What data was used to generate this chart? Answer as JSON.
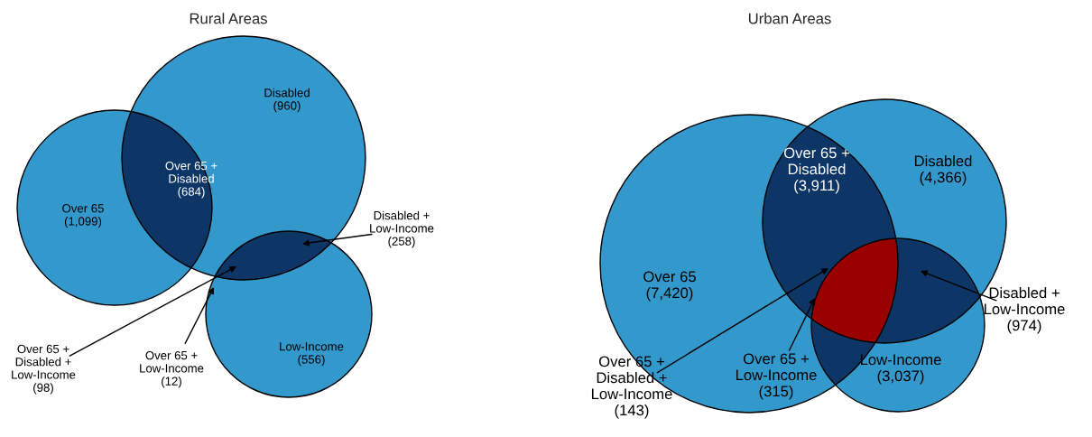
{
  "chart_data": [
    {
      "type": "other",
      "title": "Rural Areas",
      "categories": [
        "Over 65",
        "Disabled",
        "Low-Income",
        "Over 65 + Disabled",
        "Disabled + Low-Income",
        "Over 65 + Low-Income",
        "Over 65 + Disabled + Low-Income"
      ],
      "values": [
        1099,
        960,
        556,
        684,
        258,
        12,
        98
      ],
      "value_labels": [
        "(1,099)",
        "(960)",
        "(556)",
        "(684)",
        "(258)",
        "(12)",
        "(98)"
      ],
      "colors": [
        "#3399cc",
        "#3399cc",
        "#3399cc",
        "#0d3566",
        "#0d3566",
        "#0d3566",
        "#990000"
      ],
      "data_labels": true
    },
    {
      "type": "other",
      "title": "Urban Areas",
      "categories": [
        "Over 65",
        "Disabled",
        "Low-Income",
        "Over 65 + Disabled",
        "Disabled + Low-Income",
        "Over 65 + Low-Income",
        "Over 65 + Disabled + Low-Income"
      ],
      "values": [
        7420,
        4366,
        3037,
        3911,
        974,
        315,
        143
      ],
      "value_labels": [
        "(7,420)",
        "(4,366)",
        "(3,037)",
        "(3,911)",
        "(974)",
        "(315)",
        "(143)"
      ],
      "colors": [
        "#3399cc",
        "#3399cc",
        "#3399cc",
        "#0d3566",
        "#0d3566",
        "#0d3566",
        "#990000"
      ],
      "data_labels": true
    }
  ]
}
